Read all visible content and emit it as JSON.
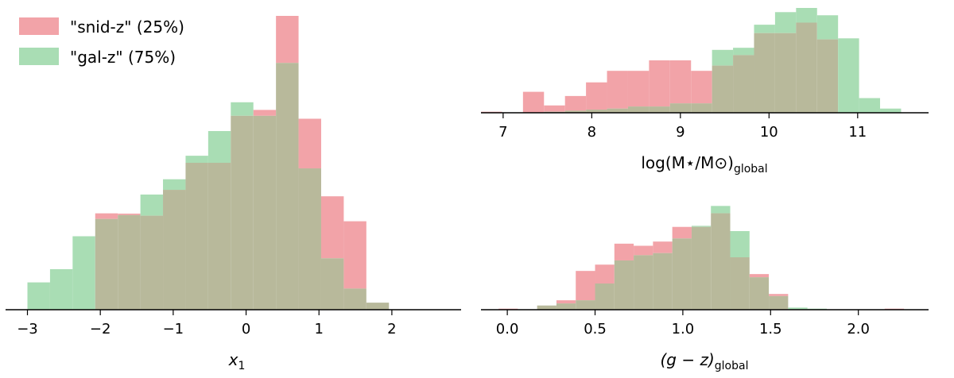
{
  "colors": {
    "snid": "#f2a3a8",
    "gal": "#a9ddb4",
    "overlap": "#b8b99b",
    "axis": "#000000"
  },
  "legend": {
    "placement": "top-left",
    "entries": [
      {
        "series": "snid",
        "label": "\"snid-z\" (25%)"
      },
      {
        "series": "gal",
        "label": "\"gal-z\" (75%)"
      }
    ]
  },
  "chart_data": [
    {
      "type": "histogram",
      "xlabel_main": "x",
      "xlabel_sub": "1",
      "xlim": [
        -3.3,
        2.95
      ],
      "ylim": [
        0,
        1.0
      ],
      "ticks": [
        -3,
        -2,
        -1,
        0,
        1,
        2
      ],
      "tick_labels": [
        "−3",
        "−2",
        "−1",
        "0",
        "1",
        "2"
      ],
      "bin_edges": [
        -3.0,
        -2.69,
        -2.38,
        -2.07,
        -1.76,
        -1.45,
        -1.14,
        -0.83,
        -0.52,
        -0.21,
        0.1,
        0.41,
        0.72,
        1.03,
        1.34,
        1.65,
        1.96
      ],
      "series": [
        {
          "name": "\"snid-z\" (25%)",
          "key": "snid",
          "values": [
            0.0,
            0.0,
            0.0,
            0.328,
            0.327,
            0.32,
            0.408,
            0.5,
            0.5,
            0.66,
            0.68,
            1.0,
            0.65,
            0.386,
            0.301,
            0.024
          ]
        },
        {
          "name": "\"gal-z\" (75%)",
          "key": "gal",
          "values": [
            0.093,
            0.138,
            0.25,
            0.309,
            0.322,
            0.392,
            0.444,
            0.524,
            0.608,
            0.706,
            0.66,
            0.84,
            0.481,
            0.175,
            0.072,
            0.024
          ]
        }
      ]
    },
    {
      "type": "histogram",
      "xlabel": "log(M⋆/M⊙)",
      "xlabel_sub": "global",
      "xlim": [
        6.75,
        11.8
      ],
      "ylim": [
        0,
        1.0
      ],
      "ticks": [
        7,
        8,
        9,
        10,
        11
      ],
      "tick_labels": [
        "7",
        "8",
        "9",
        "10",
        "11"
      ],
      "bin_edges": [
        6.75,
        6.987,
        7.224,
        7.461,
        7.698,
        7.935,
        8.172,
        8.409,
        8.646,
        8.883,
        9.12,
        9.357,
        9.594,
        9.831,
        10.068,
        10.305,
        10.542,
        10.779,
        11.016,
        11.253,
        11.49
      ],
      "series": [
        {
          "name": "\"snid-z\" (25%)",
          "key": "snid",
          "values": [
            0.01,
            0.0,
            0.2,
            0.07,
            0.16,
            0.29,
            0.4,
            0.4,
            0.5,
            0.5,
            0.4,
            0.45,
            0.55,
            0.76,
            0.76,
            0.86,
            0.7,
            0.0,
            0.0,
            0.0
          ]
        },
        {
          "name": "\"gal-z\" (75%)",
          "key": "gal",
          "values": [
            0.0,
            0.0,
            0.0,
            0.01,
            0.02,
            0.03,
            0.04,
            0.06,
            0.06,
            0.09,
            0.09,
            0.6,
            0.62,
            0.84,
            0.96,
            1.0,
            0.93,
            0.71,
            0.14,
            0.04
          ]
        }
      ]
    },
    {
      "type": "histogram",
      "xlabel_main": "(g − z)",
      "xlabel_sub": "global",
      "xlim": [
        -0.15,
        2.4
      ],
      "ylim": [
        0,
        1.0
      ],
      "ticks": [
        0.0,
        0.5,
        1.0,
        1.5,
        2.0
      ],
      "tick_labels": [
        "0.0",
        "0.5",
        "1.0",
        "1.5",
        "2.0"
      ],
      "bin_edges": [
        -0.05,
        0.06,
        0.17,
        0.28,
        0.39,
        0.5,
        0.61,
        0.72,
        0.83,
        0.94,
        1.05,
        1.16,
        1.27,
        1.38,
        1.49,
        1.6,
        1.71,
        1.82,
        1.93,
        2.04,
        2.15,
        2.26
      ],
      "series": [
        {
          "name": "\"snid-z\" (25%)",
          "key": "snid",
          "values": [
            0.01,
            0.0,
            0.04,
            0.09,
            0.37,
            0.43,
            0.63,
            0.61,
            0.65,
            0.79,
            0.79,
            0.92,
            0.5,
            0.34,
            0.15,
            0.0,
            0.0,
            0.0,
            0.0,
            0.0,
            0.01
          ]
        },
        {
          "name": "\"gal-z\" (75%)",
          "key": "gal",
          "values": [
            0.0,
            0.0,
            0.04,
            0.06,
            0.09,
            0.25,
            0.47,
            0.52,
            0.54,
            0.68,
            0.8,
            0.99,
            0.75,
            0.31,
            0.13,
            0.02,
            0.01,
            0.0,
            0.0,
            0.0,
            0.0
          ]
        }
      ]
    }
  ]
}
